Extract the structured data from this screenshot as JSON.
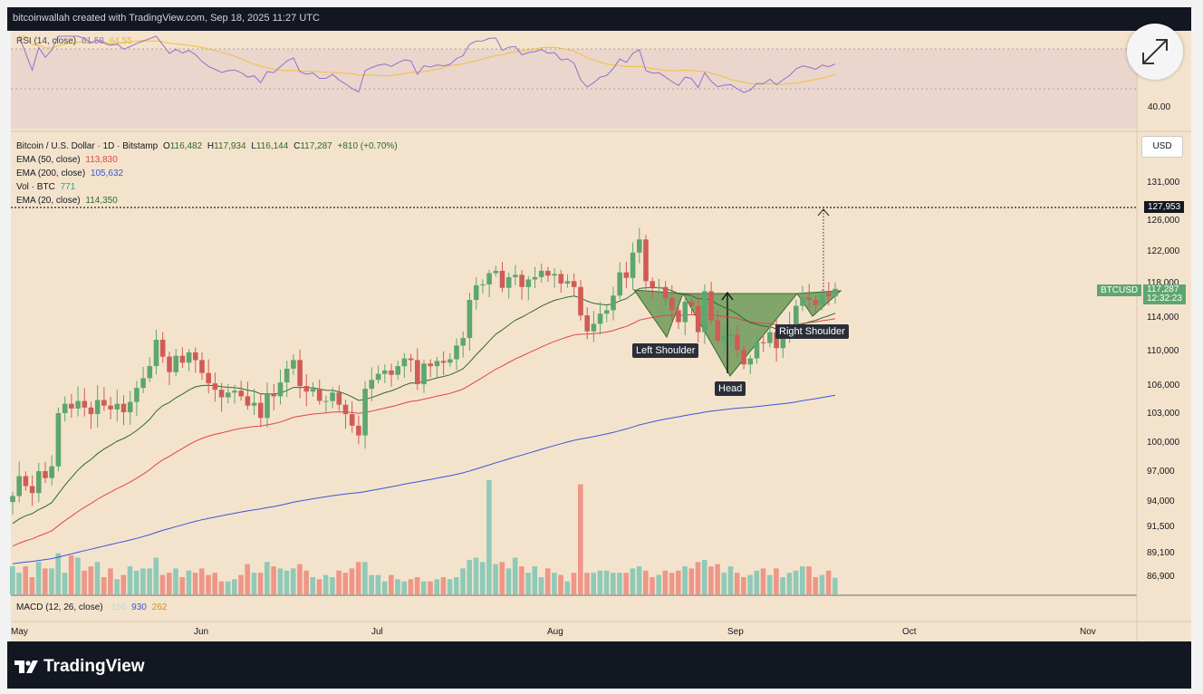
{
  "header": {
    "text": "bitcoinwallah created with TradingView.com, Sep 18, 2025 11:27 UTC"
  },
  "footer": {
    "logo_text": "TradingView"
  },
  "rsi_legend": {
    "name": "RSI (14, close)",
    "value": "61.58",
    "value2": "64.55"
  },
  "rsi_axis": {
    "label_40": "40.00"
  },
  "main_legend": {
    "symbol": "Bitcoin / U.S. Dollar · 1D · Bitstamp",
    "open_label": "O",
    "open": "116,482",
    "high_label": "H",
    "high": "117,934",
    "low_label": "L",
    "low": "116,144",
    "close_label": "C",
    "close": "117,287",
    "change": "+810 (+0.70%)",
    "ema50_name": "EMA (50, close)",
    "ema50_value": "113,830",
    "ema200_name": "EMA (200, close)",
    "ema200_value": "105,632",
    "vol_name": "Vol · BTC",
    "vol_value": "771",
    "ema20_name": "EMA (20, close)",
    "ema20_value": "114,350"
  },
  "macd_legend": {
    "name": "MACD (12, 26, close)",
    "v1": "-156",
    "v2": "930",
    "v3": "262"
  },
  "price_axis": {
    "currency_button": "USD",
    "ticks": [
      "131,000",
      "126,000",
      "122,000",
      "118,000",
      "114,000",
      "110,000",
      "106,000",
      "103,000",
      "100,000",
      "97,000",
      "94,000",
      "91,500",
      "89,100",
      "86,900"
    ],
    "target_label": "127,953",
    "current_symbol": "BTCUSD",
    "current_price": "117,287",
    "countdown": "12:32:23"
  },
  "time_axis": {
    "labels": [
      "May",
      "Jun",
      "Jul",
      "Aug",
      "Sep",
      "Oct",
      "Nov"
    ]
  },
  "annotations": {
    "left_shoulder": "Left Shoulder",
    "head": "Head",
    "right_shoulder": "Right Shoulder"
  },
  "colors": {
    "up": "#5ea66f",
    "down": "#d05c55",
    "ema50": "#e04545",
    "ema200": "#3955d9",
    "ema20": "#2e6a2e",
    "rsi": "#9370cc",
    "rsi_ma": "#f0c040",
    "pattern_fill": "#6d9a5a"
  },
  "chart_data": {
    "type": "candlestick",
    "symbol": "BTCUSD",
    "timeframe": "1D",
    "x_labels": [
      "May",
      "Jun",
      "Jul",
      "Aug",
      "Sep",
      "Oct",
      "Nov"
    ],
    "ylim": [
      84000,
      134000
    ],
    "y_ticks": [
      131000,
      126000,
      122000,
      118000,
      114000,
      110000,
      106000,
      103000,
      100000,
      97000,
      94000,
      91500,
      89100,
      86900
    ],
    "close": [
      94500,
      96500,
      95500,
      94800,
      97000,
      96300,
      97500,
      103000,
      104000,
      103500,
      104300,
      103600,
      102900,
      104400,
      103800,
      103400,
      104000,
      103100,
      104200,
      105700,
      106800,
      108200,
      111300,
      109300,
      107500,
      109400,
      108600,
      109800,
      108900,
      107400,
      106200,
      105500,
      104700,
      105200,
      105400,
      104800,
      103800,
      104100,
      102500,
      105000,
      104800,
      106300,
      107900,
      108900,
      105900,
      105300,
      105600,
      104300,
      104300,
      105200,
      103900,
      102900,
      101700,
      100700,
      105600,
      106600,
      107300,
      107700,
      107200,
      108200,
      109100,
      108900,
      106100,
      108500,
      108200,
      108800,
      108600,
      109000,
      110600,
      111500,
      116000,
      117700,
      117800,
      119200,
      119500,
      117400,
      118700,
      119000,
      117500,
      118400,
      118700,
      119500,
      118900,
      119100,
      117900,
      118200,
      117500,
      114200,
      112300,
      113200,
      114400,
      114800,
      116500,
      119300,
      118600,
      121800,
      123500,
      118200,
      117400,
      117500,
      116200,
      114800,
      113400,
      115800,
      115300,
      112200,
      117000,
      113600,
      111200,
      111700,
      111900,
      110100,
      108400,
      109100,
      111000,
      110900,
      112200,
      110300,
      111700,
      113000,
      115300,
      116300,
      116000,
      115400,
      116800,
      116400,
      117287
    ],
    "volume_btc": [
      1300,
      1000,
      1300,
      800,
      1500,
      1200,
      1200,
      1900,
      1000,
      1800,
      1700,
      1100,
      1300,
      1500,
      800,
      1200,
      700,
      900,
      1300,
      1100,
      1200,
      1200,
      1700,
      900,
      1000,
      1200,
      800,
      1100,
      1000,
      1200,
      900,
      1000,
      600,
      600,
      700,
      900,
      1400,
      1000,
      1000,
      1500,
      1300,
      1200,
      1100,
      1200,
      1400,
      1100,
      800,
      700,
      900,
      800,
      1100,
      1000,
      1200,
      1500,
      1500,
      900,
      900,
      600,
      900,
      700,
      600,
      700,
      800,
      600,
      600,
      700,
      800,
      700,
      800,
      1200,
      1600,
      1700,
      1500,
      5300,
      1400,
      1500,
      1200,
      1700,
      1300,
      1000,
      1300,
      800,
      1200,
      1000,
      900,
      600,
      1000,
      5100,
      1000,
      1000,
      1100,
      1100,
      1000,
      1000,
      1000,
      1200,
      1300,
      1100,
      800,
      900,
      1100,
      1000,
      1100,
      1300,
      1200,
      1500,
      1600,
      1300,
      1400,
      1000,
      1300,
      1000,
      800,
      900,
      1100,
      1200,
      900,
      1200,
      800,
      1000,
      1100,
      1300,
      1300,
      800,
      900,
      1100,
      771
    ]
  }
}
